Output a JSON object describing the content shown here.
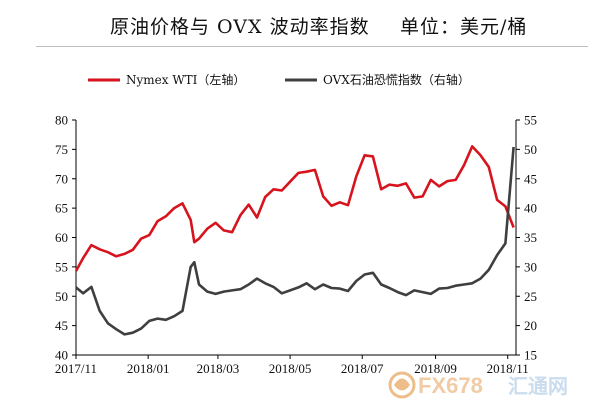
{
  "title": {
    "main": "原油价格与 OVX 波动率指数",
    "unit": "单位：美元/桶"
  },
  "watermark": {
    "brand": "FX678",
    "cn": "汇通网"
  },
  "colors": {
    "wti": "#d7141e",
    "ovx": "#3f3f3f",
    "axis": "#000000"
  },
  "chart_data": {
    "type": "line",
    "title": "原油价格与 OVX 波动率指数",
    "unit": "单位：美元/桶",
    "legend_position": "top",
    "grid": false,
    "x_ticks": [
      "2017/11",
      "2018/01",
      "2018/03",
      "2018/05",
      "2018/07",
      "2018/09",
      "2018/11"
    ],
    "y_left": {
      "ticks": [
        40,
        45,
        50,
        55,
        60,
        65,
        70,
        75,
        80
      ],
      "ylim": [
        40,
        80
      ]
    },
    "y_right": {
      "ticks": [
        15,
        20,
        25,
        30,
        35,
        40,
        45,
        50,
        55
      ],
      "ylim": [
        15,
        55
      ]
    },
    "series": [
      {
        "name": "Nymex WTI（左轴）",
        "axis": "left",
        "x": [
          "2017-11-01",
          "2017-11-07",
          "2017-11-14",
          "2017-11-21",
          "2017-11-28",
          "2017-12-05",
          "2017-12-12",
          "2017-12-19",
          "2017-12-26",
          "2018-01-02",
          "2018-01-09",
          "2018-01-16",
          "2018-01-23",
          "2018-01-30",
          "2018-02-06",
          "2018-02-09",
          "2018-02-13",
          "2018-02-20",
          "2018-02-27",
          "2018-03-06",
          "2018-03-13",
          "2018-03-20",
          "2018-03-27",
          "2018-04-03",
          "2018-04-10",
          "2018-04-17",
          "2018-04-24",
          "2018-05-01",
          "2018-05-08",
          "2018-05-15",
          "2018-05-22",
          "2018-05-29",
          "2018-06-05",
          "2018-06-12",
          "2018-06-19",
          "2018-06-26",
          "2018-07-03",
          "2018-07-10",
          "2018-07-17",
          "2018-07-24",
          "2018-07-31",
          "2018-08-07",
          "2018-08-14",
          "2018-08-21",
          "2018-08-28",
          "2018-09-04",
          "2018-09-11",
          "2018-09-18",
          "2018-09-25",
          "2018-10-02",
          "2018-10-09",
          "2018-10-16",
          "2018-10-23",
          "2018-10-30",
          "2018-11-06"
        ],
        "values": [
          54.3,
          56.5,
          58.7,
          58.0,
          57.5,
          56.8,
          57.2,
          57.9,
          59.8,
          60.4,
          62.8,
          63.6,
          65.0,
          65.8,
          63.0,
          59.2,
          59.8,
          61.5,
          62.5,
          61.2,
          60.9,
          63.8,
          65.6,
          63.4,
          66.9,
          68.2,
          68.0,
          69.5,
          71.0,
          71.2,
          71.5,
          67.0,
          65.4,
          66.0,
          65.5,
          70.4,
          74.0,
          73.8,
          68.2,
          69.0,
          68.8,
          69.2,
          66.8,
          67.0,
          69.8,
          68.7,
          69.6,
          69.8,
          72.3,
          75.5,
          74.0,
          72.0,
          66.4,
          65.3,
          61.7
        ]
      },
      {
        "name": "OVX石油恐慌指数（右轴）",
        "axis": "right",
        "x": [
          "2017-11-01",
          "2017-11-07",
          "2017-11-14",
          "2017-11-21",
          "2017-11-28",
          "2017-12-05",
          "2017-12-12",
          "2017-12-19",
          "2017-12-26",
          "2018-01-02",
          "2018-01-09",
          "2018-01-16",
          "2018-01-23",
          "2018-01-30",
          "2018-02-06",
          "2018-02-09",
          "2018-02-13",
          "2018-02-20",
          "2018-02-27",
          "2018-03-06",
          "2018-03-13",
          "2018-03-20",
          "2018-03-27",
          "2018-04-03",
          "2018-04-10",
          "2018-04-17",
          "2018-04-24",
          "2018-05-01",
          "2018-05-08",
          "2018-05-15",
          "2018-05-22",
          "2018-05-29",
          "2018-06-05",
          "2018-06-12",
          "2018-06-19",
          "2018-06-26",
          "2018-07-03",
          "2018-07-10",
          "2018-07-17",
          "2018-07-24",
          "2018-07-31",
          "2018-08-07",
          "2018-08-14",
          "2018-08-21",
          "2018-08-28",
          "2018-09-04",
          "2018-09-11",
          "2018-09-18",
          "2018-09-25",
          "2018-10-02",
          "2018-10-09",
          "2018-10-16",
          "2018-10-23",
          "2018-10-30",
          "2018-11-06"
        ],
        "values": [
          26.5,
          25.5,
          26.6,
          22.5,
          20.4,
          19.4,
          18.5,
          18.8,
          19.5,
          20.8,
          21.2,
          21.0,
          21.6,
          22.5,
          30.0,
          30.8,
          27.0,
          25.8,
          25.4,
          25.8,
          26.0,
          26.2,
          27.0,
          28.0,
          27.2,
          26.6,
          25.5,
          26.0,
          26.5,
          27.2,
          26.2,
          27.0,
          26.4,
          26.3,
          25.9,
          27.6,
          28.7,
          29.0,
          27.0,
          26.4,
          25.7,
          25.2,
          26.0,
          25.7,
          25.4,
          26.3,
          26.4,
          26.8,
          27.0,
          27.2,
          28.0,
          29.5,
          32.0,
          34.0,
          50.4
        ]
      }
    ]
  }
}
